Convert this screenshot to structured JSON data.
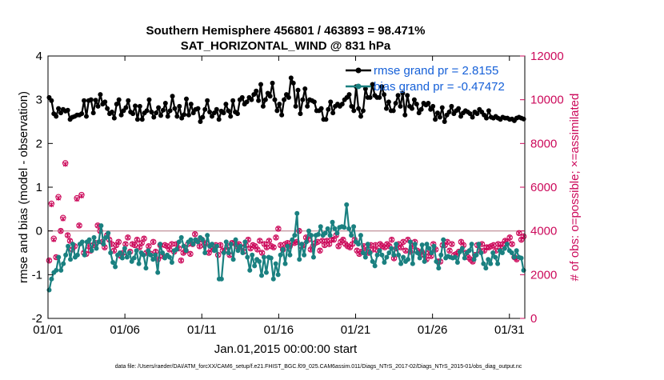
{
  "chart_data": {
    "type": "line",
    "title_line1": "Southern Hemisphere 456801 / 463893 = 98.471%",
    "title_line2": "SAT_HORIZONTAL_WIND @ 831 hPa",
    "xlabel": "Jan.01,2015 00:00:00 start",
    "ylabel": "rmse and bias (model - observation)",
    "ylabel_right": "# of obs: o=possible; ×=assimilated",
    "footer": "data file: /Users/raeder/DAI/ATM_forcXX/CAM6_setup/f.e21.FHIST_BGC.f09_025.CAM6assim.011/Diags_NTrS_2017-02/Diags_NTrS_2015-01/obs_diag_output.nc",
    "x_range": [
      1,
      32
    ],
    "x_ticks": [
      1,
      6,
      11,
      16,
      21,
      26,
      31
    ],
    "x_tick_labels": [
      "01/01",
      "01/06",
      "01/11",
      "01/16",
      "01/21",
      "01/26",
      "01/31"
    ],
    "ylim": [
      -2,
      4
    ],
    "y_ticks": [
      "-2",
      "-1",
      "0",
      "1",
      "2",
      "3",
      "4"
    ],
    "ylim_right": [
      0,
      12000
    ],
    "y_ticks_right": [
      "0",
      "2000",
      "4000",
      "6000",
      "8000",
      "10000",
      "12000"
    ],
    "legend": [
      "rmse grand pr = 2.8155",
      "bias grand pr = -0.47472"
    ],
    "colors": {
      "rmse": "#000000",
      "bias": "#1a8080",
      "obs": "#cc0a5b",
      "zero_line": "#c9a0a8"
    },
    "series": [
      {
        "name": "rmse",
        "axis": "left",
        "values": [
          3.05,
          2.98,
          2.68,
          2.62,
          2.8,
          2.7,
          2.78,
          2.74,
          2.76,
          2.55,
          2.6,
          2.62,
          2.65,
          2.65,
          2.68,
          2.98,
          2.62,
          2.98,
          3.0,
          2.7,
          2.99,
          2.85,
          3.12,
          2.9,
          2.95,
          2.8,
          2.68,
          2.72,
          2.58,
          2.9,
          3.0,
          2.65,
          2.75,
          2.82,
          2.98,
          2.72,
          2.68,
          2.86,
          2.55,
          2.85,
          2.55,
          2.7,
          2.75,
          3.0,
          2.72,
          2.6,
          2.7,
          2.82,
          2.64,
          2.76,
          2.92,
          2.62,
          2.75,
          3.08,
          2.8,
          2.62,
          2.85,
          2.58,
          2.66,
          3.02,
          2.65,
          2.9,
          2.7,
          2.78,
          2.8,
          2.5,
          2.6,
          2.78,
          2.98,
          2.72,
          2.62,
          2.7,
          2.78,
          2.55,
          2.74,
          2.7,
          2.9,
          2.75,
          2.62,
          2.98,
          2.72,
          2.68,
          3.0,
          3.05,
          2.9,
          2.95,
          3.05,
          3.0,
          3.12,
          3.2,
          2.98,
          3.35,
          2.85,
          3.0,
          3.15,
          3.08,
          3.38,
          3.0,
          2.75,
          2.9,
          2.65,
          3.0,
          3.12,
          3.05,
          3.5,
          3.38,
          2.85,
          3.22,
          2.68,
          3.0,
          3.25,
          2.85,
          3.0,
          2.98,
          2.95,
          2.75,
          2.75,
          2.8,
          2.55,
          2.55,
          2.78,
          2.95,
          2.7,
          2.85,
          2.9,
          2.85,
          2.9,
          3.0,
          3.05,
          3.12,
          2.85,
          2.75,
          3.3,
          2.8,
          2.62,
          2.75,
          3.25,
          3.05,
          3.05,
          3.35,
          3.1,
          3.05,
          3.05,
          3.3,
          3.12,
          2.8,
          2.95,
          2.75,
          2.75,
          2.92,
          3.1,
          2.85,
          3.15,
          2.65,
          3.1,
          2.85,
          2.8,
          3.0,
          2.9,
          2.7,
          2.78,
          2.92,
          2.88,
          2.92,
          2.78,
          2.85,
          2.55,
          2.7,
          2.6,
          2.82,
          2.5,
          2.65,
          2.72,
          2.85,
          2.68,
          2.75,
          2.8,
          2.62,
          2.7,
          2.75,
          2.72,
          2.68,
          2.6,
          2.72,
          2.68,
          2.78,
          2.72,
          2.65,
          2.58,
          2.75,
          2.6,
          2.58,
          2.62,
          2.58,
          2.55,
          2.6,
          2.58,
          2.58,
          2.55,
          2.56,
          2.52,
          2.58,
          2.6,
          2.58,
          2.56
        ]
      },
      {
        "name": "bias",
        "axis": "left",
        "values": [
          -1.35,
          -1.1,
          -0.95,
          -0.9,
          -0.6,
          -0.9,
          -0.75,
          -0.55,
          -0.35,
          -0.65,
          -0.3,
          -0.6,
          -0.55,
          -0.3,
          -0.25,
          -0.55,
          -0.25,
          -0.2,
          -0.45,
          -0.15,
          -0.4,
          -0.25,
          0.12,
          -0.3,
          -0.15,
          -0.05,
          -0.5,
          -0.72,
          -0.82,
          -0.55,
          -0.5,
          -0.62,
          -0.4,
          -0.6,
          -0.5,
          -0.7,
          -0.62,
          -0.45,
          -0.75,
          -0.5,
          -0.55,
          -0.85,
          -0.45,
          -0.55,
          -0.65,
          -0.55,
          -0.95,
          -0.3,
          -0.5,
          -0.62,
          -0.55,
          -0.6,
          -0.72,
          -0.45,
          -0.42,
          -0.25,
          -0.15,
          -0.35,
          -0.45,
          -0.25,
          -0.2,
          -0.3,
          -0.2,
          -0.25,
          -0.15,
          -0.2,
          -0.5,
          -0.1,
          -0.35,
          -0.3,
          -0.45,
          -0.35,
          -1.1,
          -1.1,
          -0.5,
          -0.25,
          -0.5,
          -0.3,
          -0.65,
          -0.2,
          -0.45,
          -0.35,
          -0.5,
          -0.25,
          -0.6,
          -0.9,
          -0.55,
          -0.8,
          -0.65,
          -0.7,
          -1.02,
          -0.6,
          -0.95,
          -0.6,
          -0.62,
          -1.1,
          -0.75,
          -1.0,
          -0.55,
          -0.42,
          -0.75,
          -0.35,
          -0.55,
          -0.2,
          -0.1,
          0.4,
          -0.65,
          -0.3,
          -0.55,
          -0.25,
          0.0,
          -0.1,
          -0.6,
          -0.1,
          -0.08,
          0.1,
          -0.1,
          -0.05,
          0.05,
          -0.1,
          0.2,
          0.05,
          -0.05,
          0.08,
          0.1,
          0.08,
          0.6,
          0.05,
          -0.1,
          0.1,
          -0.25,
          -0.3,
          -0.1,
          -0.5,
          -0.6,
          -0.3,
          -0.5,
          -0.7,
          -0.8,
          -0.55,
          -0.45,
          -0.55,
          -0.72,
          -0.6,
          -0.5,
          -0.4,
          -0.55,
          -0.3,
          -0.55,
          -0.75,
          -0.6,
          -0.7,
          -0.65,
          -0.25,
          -0.75,
          -0.3,
          -0.5,
          -0.62,
          -0.32,
          -0.7,
          -0.3,
          -0.4,
          -0.5,
          -0.35,
          -0.7,
          -0.85,
          -0.55,
          -0.2,
          -0.62,
          -0.58,
          -0.6,
          -0.62,
          -0.6,
          -0.72,
          -0.48,
          -0.4,
          -0.62,
          -0.5,
          -0.45,
          -0.3,
          -0.65,
          -0.55,
          -0.3,
          -0.5,
          -0.75,
          -0.85,
          -0.65,
          -0.75,
          -0.5,
          -0.6,
          -0.75,
          -0.45,
          -0.5,
          -0.4,
          -0.3,
          -0.45,
          -0.5,
          -0.6,
          -0.45,
          -0.6,
          -0.62,
          -0.9
        ]
      },
      {
        "name": "obs_possible",
        "axis": "right",
        "values": [
          2650,
          5250,
          3650,
          2800,
          5550,
          4000,
          4600,
          7100,
          3800,
          3550,
          3150,
          3300,
          5500,
          4250,
          5650,
          3000,
          2950,
          3300,
          3100,
          3350,
          3450,
          4250,
          4000,
          3500,
          3250,
          3800,
          3600,
          3400,
          3100,
          3350,
          3500,
          2850,
          3000,
          3400,
          3700,
          3050,
          3400,
          3350,
          3600,
          3250,
          3450,
          3650,
          3000,
          3300,
          2950,
          3500,
          3050,
          2700,
          3350,
          2850,
          3350,
          3300,
          3150,
          3400,
          3050,
          3400,
          3200,
          2650,
          3000,
          3100,
          3400,
          2950,
          3400,
          3850,
          3550,
          3300,
          3600,
          3350,
          3450,
          3000,
          3150,
          3250,
          3350,
          2900,
          3350,
          3100,
          3100,
          3300,
          2900,
          3450,
          3450,
          3300,
          3400,
          3250,
          3050,
          3350,
          3600,
          3200,
          3350,
          3300,
          3150,
          3550,
          3000,
          3400,
          3250,
          3550,
          3300,
          3250,
          3700,
          4100,
          3350,
          3150,
          3400,
          3450,
          3300,
          3500,
          3450,
          3500,
          4000,
          3300,
          3350,
          3700,
          3600,
          3150,
          3300,
          3450,
          3500,
          3100,
          3550,
          3350,
          3550,
          3400,
          3600,
          3600,
          3800,
          3300,
          3500,
          3600,
          3400,
          3300,
          3250,
          3400,
          3600,
          3100,
          2950,
          3050,
          3300,
          3050,
          3000,
          3350,
          3150,
          3350,
          3100,
          3400,
          3300,
          3250,
          3400,
          3300,
          3600,
          2750,
          3200,
          3400,
          3250,
          3500,
          3100,
          3600,
          3050,
          3300,
          3500,
          3100,
          3000,
          3050,
          2900,
          2700,
          3000,
          2850,
          3400,
          3150,
          2600,
          2600,
          3350,
          3350,
          3500,
          3100,
          3400,
          2900,
          2950,
          3050,
          3500,
          3350,
          3000,
          2800,
          2700,
          2600,
          2900,
          3350,
          3100,
          3400,
          3100,
          3250,
          3250,
          3300,
          3350,
          3100,
          3400,
          3250,
          3400,
          3550,
          3500,
          3700,
          3400,
          2800,
          2700,
          3900,
          3600,
          3750
        ]
      },
      {
        "name": "obs_assimilated",
        "axis": "right",
        "values": [
          2650,
          5200,
          3600,
          2800,
          5500,
          4000,
          4550,
          7050,
          3800,
          3550,
          3150,
          3300,
          5450,
          4250,
          5600,
          3000,
          2950,
          3300,
          3100,
          3350,
          3450,
          4250,
          4000,
          3500,
          3250,
          3800,
          3600,
          3400,
          3100,
          3350,
          3500,
          2850,
          3000,
          3400,
          3700,
          3050,
          3400,
          3350,
          3600,
          3250,
          3450,
          3650,
          3000,
          3300,
          2950,
          3500,
          3050,
          2700,
          3350,
          2850,
          3350,
          3300,
          3150,
          3400,
          3050,
          3400,
          3200,
          2650,
          3000,
          3100,
          3400,
          2950,
          3400,
          3850,
          3550,
          3300,
          3600,
          3350,
          3450,
          3000,
          3150,
          3250,
          3350,
          2900,
          3350,
          3100,
          3100,
          3300,
          2900,
          3450,
          3450,
          3300,
          3400,
          3250,
          3050,
          3350,
          3600,
          3200,
          3350,
          3300,
          3150,
          3550,
          3000,
          3400,
          3250,
          3550,
          3300,
          3250,
          3700,
          4100,
          3350,
          3150,
          3400,
          3450,
          3300,
          3500,
          3450,
          3500,
          4000,
          3300,
          3350,
          3700,
          3600,
          3150,
          3300,
          3450,
          3500,
          3100,
          3550,
          3350,
          3550,
          3400,
          3600,
          3600,
          3800,
          3300,
          3500,
          3600,
          3400,
          3300,
          3250,
          3400,
          3600,
          3100,
          2950,
          3050,
          3300,
          3050,
          3000,
          3350,
          3150,
          3350,
          3100,
          3400,
          3300,
          3250,
          3400,
          3300,
          3600,
          2750,
          3200,
          3400,
          3250,
          3500,
          3100,
          3600,
          3050,
          3300,
          3500,
          3100,
          3000,
          3050,
          2900,
          2700,
          3000,
          2850,
          3400,
          3150,
          2600,
          2600,
          3350,
          3350,
          3500,
          3100,
          3400,
          2900,
          2950,
          3050,
          3500,
          3350,
          3000,
          2800,
          2700,
          2600,
          2900,
          3350,
          3100,
          3400,
          3100,
          3250,
          3250,
          3300,
          3350,
          3100,
          3400,
          3250,
          3400,
          3550,
          3500,
          3700,
          3400,
          2800,
          2700,
          3900,
          3600,
          3750
        ]
      }
    ]
  }
}
